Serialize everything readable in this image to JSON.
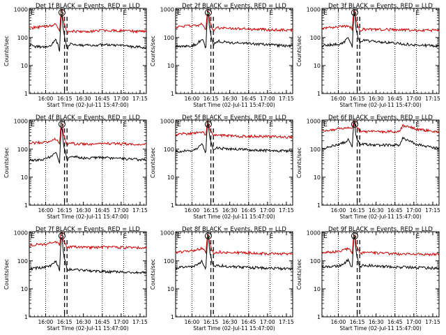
{
  "chart_data": [
    {
      "type": "line",
      "title": "Det 1f BLACK = Events, RED = LLD",
      "xlabel": "Start Time (02-Jul-11 15:47:00)",
      "ylabel": "Counts/sec",
      "xticks": [
        "16:00",
        "16:15",
        "16:30",
        "16:45",
        "17:00",
        "17:15"
      ],
      "yticks": [
        "1",
        "10",
        "100",
        "1000"
      ],
      "yscale": "log",
      "ylim": [
        1,
        1100
      ],
      "markers": [
        "E",
        "S",
        "E"
      ],
      "series": [
        {
          "color": "#000000",
          "x_min": [
            0,
            4,
            13,
            17,
            21,
            23,
            24,
            25,
            26,
            27,
            30,
            33,
            45,
            60,
            75,
            90
          ],
          "values": [
            55,
            48,
            46,
            50,
            85,
            55,
            28,
            450,
            780,
            180,
            40,
            60,
            52,
            55,
            50,
            45
          ]
        },
        {
          "color": "#cc0000",
          "x_min": [
            0,
            4,
            13,
            17,
            21,
            23,
            24,
            25,
            26,
            27,
            30,
            33,
            45,
            60,
            75,
            90
          ],
          "values": [
            210,
            230,
            250,
            260,
            300,
            230,
            150,
            750,
            1000,
            400,
            150,
            170,
            160,
            180,
            170,
            165
          ]
        }
      ]
    },
    {
      "type": "line",
      "title": "Det 2f BLACK = Events, RED = LLD",
      "xlabel": "Start Time (02-Jul-11 15:47:00)",
      "ylabel": "Counts/sec",
      "xticks": [
        "16:00",
        "16:15",
        "16:30",
        "16:45",
        "17:00",
        "17:15"
      ],
      "yticks": [
        "1",
        "10",
        "100",
        "1000"
      ],
      "yscale": "log",
      "ylim": [
        1,
        1100
      ],
      "markers": [
        "E",
        "S",
        "E"
      ],
      "series": [
        {
          "color": "#000000",
          "x_min": [
            0,
            4,
            13,
            17,
            21,
            23,
            24,
            25,
            26,
            27,
            30,
            33,
            45,
            60,
            75,
            90
          ],
          "values": [
            50,
            50,
            52,
            60,
            90,
            60,
            35,
            500,
            800,
            200,
            55,
            75,
            65,
            60,
            55,
            50
          ]
        },
        {
          "color": "#cc0000",
          "x_min": [
            0,
            4,
            13,
            17,
            21,
            23,
            24,
            25,
            26,
            27,
            30,
            33,
            45,
            60,
            75,
            90
          ],
          "values": [
            220,
            250,
            260,
            270,
            300,
            240,
            170,
            800,
            1000,
            400,
            170,
            220,
            210,
            200,
            190,
            185
          ]
        }
      ]
    },
    {
      "type": "line",
      "title": "Det 3f BLACK = Events, RED = LLD",
      "xlabel": "Start Time (02-Jul-11 15:47:00)",
      "ylabel": "Counts/sec",
      "xticks": [
        "16:00",
        "16:15",
        "16:30",
        "16:45",
        "17:00",
        "17:15"
      ],
      "yticks": [
        "1",
        "10",
        "100",
        "1000"
      ],
      "yscale": "log",
      "ylim": [
        1,
        1100
      ],
      "markers": [
        "E",
        "S",
        "E"
      ],
      "series": [
        {
          "color": "#000000",
          "x_min": [
            0,
            4,
            13,
            17,
            21,
            23,
            24,
            25,
            26,
            27,
            30,
            33,
            45,
            60,
            75,
            90
          ],
          "values": [
            50,
            55,
            58,
            65,
            100,
            65,
            40,
            500,
            850,
            210,
            65,
            80,
            70,
            62,
            55,
            50
          ]
        },
        {
          "color": "#cc0000",
          "x_min": [
            0,
            4,
            13,
            17,
            21,
            23,
            24,
            25,
            26,
            27,
            30,
            33,
            45,
            60,
            75,
            90
          ],
          "values": [
            200,
            220,
            240,
            250,
            270,
            230,
            170,
            750,
            1000,
            400,
            180,
            200,
            195,
            190,
            185,
            180
          ]
        }
      ]
    },
    {
      "type": "line",
      "title": "Det 4f BLACK = Events, RED = LLD",
      "xlabel": "Start Time (02-Jul-11 15:47:00)",
      "ylabel": "Counts/sec",
      "xticks": [
        "16:00",
        "16:15",
        "16:30",
        "16:45",
        "17:00",
        "17:15"
      ],
      "yticks": [
        "1",
        "10",
        "100",
        "1000"
      ],
      "yscale": "log",
      "ylim": [
        1,
        1100
      ],
      "markers": [
        "E",
        "S",
        "E"
      ],
      "series": [
        {
          "color": "#000000",
          "x_min": [
            0,
            4,
            13,
            17,
            21,
            23,
            24,
            25,
            26,
            27,
            30,
            33,
            45,
            60,
            75,
            90
          ],
          "values": [
            40,
            40,
            45,
            55,
            80,
            50,
            28,
            420,
            750,
            170,
            40,
            55,
            48,
            50,
            45,
            42
          ]
        },
        {
          "color": "#cc0000",
          "x_min": [
            0,
            4,
            13,
            17,
            21,
            23,
            24,
            25,
            26,
            27,
            30,
            33,
            45,
            60,
            75,
            90
          ],
          "values": [
            160,
            170,
            180,
            200,
            230,
            190,
            130,
            700,
            1000,
            350,
            140,
            160,
            150,
            160,
            155,
            150
          ]
        }
      ]
    },
    {
      "type": "line",
      "title": "Det 5f BLACK = Events, RED = LLD",
      "xlabel": "Start Time (02-Jul-11 15:47:00)",
      "ylabel": "Counts/sec",
      "xticks": [
        "16:00",
        "16:15",
        "16:30",
        "16:45",
        "17:00",
        "17:15"
      ],
      "yticks": [
        "1",
        "10",
        "100",
        "1000"
      ],
      "yscale": "log",
      "ylim": [
        1,
        1100
      ],
      "markers": [
        "E",
        "S",
        "E"
      ],
      "series": [
        {
          "color": "#000000",
          "x_min": [
            0,
            4,
            13,
            17,
            21,
            23,
            24,
            25,
            26,
            27,
            30,
            33,
            45,
            60,
            75,
            90
          ],
          "values": [
            80,
            85,
            90,
            110,
            160,
            100,
            70,
            600,
            900,
            250,
            90,
            110,
            100,
            95,
            90,
            85
          ]
        },
        {
          "color": "#cc0000",
          "x_min": [
            0,
            4,
            13,
            17,
            21,
            23,
            24,
            25,
            26,
            27,
            30,
            33,
            45,
            60,
            75,
            90
          ],
          "values": [
            330,
            350,
            370,
            390,
            420,
            350,
            300,
            850,
            1000,
            500,
            290,
            320,
            300,
            290,
            280,
            270
          ]
        }
      ]
    },
    {
      "type": "line",
      "title": "Det 6f BLACK = Events, RED = LLD",
      "xlabel": "Start Time (02-Jul-11 15:47:00)",
      "ylabel": "Counts/sec",
      "xticks": [
        "16:00",
        "16:15",
        "16:30",
        "16:45",
        "17:00",
        "17:15"
      ],
      "yticks": [
        "1",
        "10",
        "100",
        "1000"
      ],
      "yscale": "log",
      "ylim": [
        1,
        1100
      ],
      "markers": [
        "E",
        "S",
        "E"
      ],
      "series": [
        {
          "color": "#000000",
          "x_min": [
            0,
            4,
            13,
            17,
            21,
            23,
            24,
            25,
            26,
            27,
            30,
            33,
            45,
            62,
            64,
            75,
            90
          ],
          "values": [
            110,
            120,
            140,
            170,
            220,
            150,
            120,
            650,
            950,
            300,
            140,
            150,
            140,
            140,
            250,
            150,
            110
          ]
        },
        {
          "color": "#cc0000",
          "x_min": [
            0,
            4,
            13,
            17,
            21,
            23,
            24,
            25,
            26,
            27,
            30,
            33,
            45,
            62,
            64,
            75,
            90
          ],
          "values": [
            450,
            480,
            520,
            560,
            620,
            540,
            480,
            950,
            1050,
            650,
            440,
            420,
            420,
            430,
            700,
            520,
            430
          ]
        }
      ]
    },
    {
      "type": "line",
      "title": "Det 7f BLACK = Events, RED = LLD",
      "xlabel": "Start Time (02-Jul-11 15:47:00)",
      "ylabel": "Counts/sec",
      "xticks": [
        "16:00",
        "16:15",
        "16:30",
        "16:45",
        "17:00",
        "17:15"
      ],
      "yticks": [
        "1",
        "10",
        "100",
        "1000"
      ],
      "yscale": "log",
      "ylim": [
        1,
        1100
      ],
      "markers": [
        "E",
        "S",
        "E"
      ],
      "series": [
        {
          "color": "#000000",
          "x_min": [
            0,
            4,
            13,
            17,
            21,
            23,
            24,
            25,
            26,
            27,
            30,
            33,
            45,
            60,
            75,
            90
          ],
          "values": [
            50,
            55,
            60,
            70,
            100,
            65,
            40,
            500,
            850,
            210,
            45,
            50,
            45,
            42,
            40,
            38
          ]
        },
        {
          "color": "#cc0000",
          "x_min": [
            0,
            4,
            13,
            17,
            21,
            23,
            24,
            25,
            26,
            27,
            30,
            33,
            45,
            60,
            75,
            90
          ],
          "values": [
            360,
            380,
            400,
            430,
            470,
            420,
            340,
            900,
            1050,
            550,
            300,
            320,
            300,
            310,
            300,
            290
          ]
        }
      ]
    },
    {
      "type": "line",
      "title": "Det 8f BLACK = Events, RED = LLD",
      "xlabel": "Start Time (02-Jul-11 15:47:00)",
      "ylabel": "Counts/sec",
      "xticks": [
        "16:00",
        "16:15",
        "16:30",
        "16:45",
        "17:00",
        "17:15"
      ],
      "yticks": [
        "1",
        "10",
        "100",
        "1000"
      ],
      "yscale": "log",
      "ylim": [
        1,
        1100
      ],
      "markers": [
        "E",
        "S",
        "E"
      ],
      "series": [
        {
          "color": "#000000",
          "x_min": [
            0,
            4,
            13,
            17,
            21,
            23,
            24,
            25,
            26,
            27,
            30,
            33,
            45,
            60,
            75,
            90
          ],
          "values": [
            55,
            58,
            62,
            70,
            100,
            65,
            45,
            500,
            850,
            210,
            60,
            70,
            62,
            58,
            55,
            52
          ]
        },
        {
          "color": "#cc0000",
          "x_min": [
            0,
            4,
            13,
            17,
            21,
            23,
            24,
            25,
            26,
            27,
            30,
            33,
            45,
            60,
            75,
            90
          ],
          "values": [
            190,
            210,
            230,
            250,
            280,
            230,
            170,
            750,
            1000,
            400,
            190,
            210,
            200,
            190,
            180,
            175
          ]
        }
      ]
    },
    {
      "type": "line",
      "title": "Det 9f BLACK = Events, RED = LLD",
      "xlabel": "Start Time (02-Jul-11 15:47:00)",
      "ylabel": "Counts/sec",
      "xticks": [
        "16:00",
        "16:15",
        "16:30",
        "16:45",
        "17:00",
        "17:15"
      ],
      "yticks": [
        "1",
        "10",
        "100",
        "1000"
      ],
      "yscale": "log",
      "ylim": [
        1,
        1100
      ],
      "markers": [
        "E",
        "S",
        "E"
      ],
      "series": [
        {
          "color": "#000000",
          "x_min": [
            0,
            4,
            13,
            17,
            21,
            23,
            24,
            25,
            26,
            27,
            30,
            33,
            45,
            60,
            75,
            90
          ],
          "values": [
            60,
            62,
            66,
            75,
            110,
            70,
            50,
            520,
            880,
            220,
            60,
            70,
            65,
            60,
            58,
            55
          ]
        },
        {
          "color": "#cc0000",
          "x_min": [
            0,
            4,
            13,
            17,
            21,
            23,
            24,
            25,
            26,
            27,
            30,
            33,
            45,
            60,
            75,
            90
          ],
          "values": [
            190,
            200,
            220,
            240,
            270,
            220,
            160,
            720,
            1000,
            380,
            180,
            200,
            190,
            180,
            175,
            170
          ]
        }
      ]
    }
  ]
}
